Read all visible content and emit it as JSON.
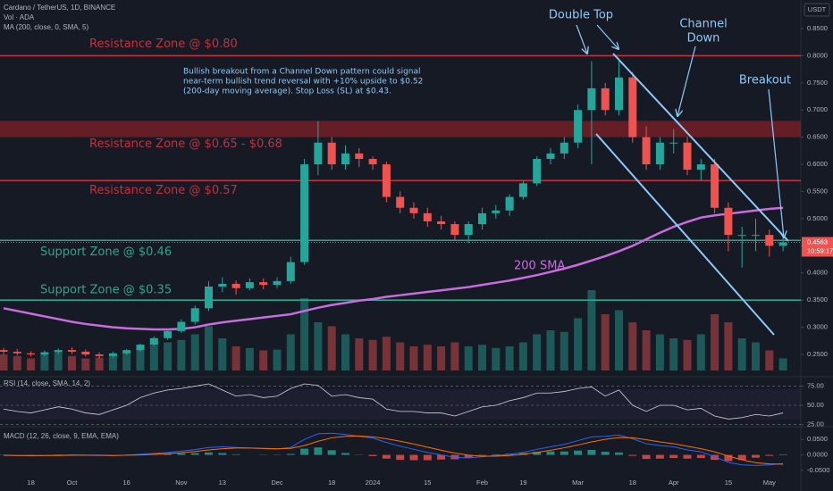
{
  "chart_data": [
    {
      "type": "candlestick",
      "title": "Cardano / TetherUS, 1D, BINANCE",
      "indicator_labels": [
        "Vol · ADA",
        "MA (200, close, 0, SMA, 5)"
      ],
      "axis_label": "USDT",
      "categories": [
        null,
        null,
        "18",
        null,
        null,
        "Oct",
        null,
        null,
        null,
        "16",
        null,
        null,
        null,
        "Nov",
        null,
        null,
        "13",
        null,
        null,
        null,
        "Dec",
        null,
        null,
        null,
        "18",
        null,
        null,
        "2024",
        null,
        null,
        null,
        "15",
        null,
        null,
        null,
        "Feb",
        null,
        null,
        "19",
        null,
        null,
        null,
        "Mar",
        null,
        null,
        null,
        "18",
        null,
        null,
        "Apr",
        null,
        null,
        null,
        "15",
        null,
        null,
        "May",
        null
      ],
      "open": [
        0.258,
        0.255,
        0.252,
        0.25,
        0.254,
        0.258,
        0.255,
        0.25,
        0.247,
        0.252,
        0.258,
        0.268,
        0.28,
        0.293,
        0.31,
        0.335,
        0.375,
        0.38,
        0.372,
        0.383,
        0.378,
        0.385,
        0.42,
        0.6,
        0.64,
        0.6,
        0.62,
        0.61,
        0.6,
        0.54,
        0.52,
        0.51,
        0.495,
        0.49,
        0.47,
        0.49,
        0.51,
        0.515,
        0.54,
        0.565,
        0.61,
        0.62,
        0.64,
        0.7,
        0.74,
        0.7,
        0.76,
        0.65,
        0.6,
        0.64,
        0.64,
        0.59,
        0.6,
        0.52,
        0.47,
        0.47,
        0.47,
        0.45
      ],
      "high": [
        0.262,
        0.26,
        0.256,
        0.257,
        0.261,
        0.263,
        0.259,
        0.254,
        0.255,
        0.26,
        0.27,
        0.283,
        0.297,
        0.315,
        0.34,
        0.385,
        0.392,
        0.386,
        0.39,
        0.39,
        0.392,
        0.43,
        0.61,
        0.68,
        0.65,
        0.635,
        0.63,
        0.615,
        0.605,
        0.55,
        0.53,
        0.52,
        0.505,
        0.495,
        0.495,
        0.52,
        0.525,
        0.545,
        0.57,
        0.615,
        0.63,
        0.65,
        0.71,
        0.79,
        0.75,
        0.79,
        0.77,
        0.67,
        0.65,
        0.665,
        0.65,
        0.61,
        0.61,
        0.53,
        0.485,
        0.5,
        0.48,
        0.47
      ],
      "low": [
        0.25,
        0.248,
        0.246,
        0.247,
        0.25,
        0.251,
        0.246,
        0.243,
        0.244,
        0.249,
        0.255,
        0.265,
        0.277,
        0.29,
        0.305,
        0.33,
        0.365,
        0.36,
        0.368,
        0.37,
        0.372,
        0.38,
        0.415,
        0.58,
        0.59,
        0.59,
        0.595,
        0.59,
        0.53,
        0.51,
        0.5,
        0.485,
        0.48,
        0.46,
        0.455,
        0.48,
        0.5,
        0.505,
        0.535,
        0.56,
        0.6,
        0.61,
        0.63,
        0.6,
        0.69,
        0.69,
        0.64,
        0.59,
        0.59,
        0.62,
        0.58,
        0.57,
        0.51,
        0.44,
        0.41,
        0.44,
        0.43,
        0.44
      ],
      "close": [
        0.255,
        0.252,
        0.25,
        0.254,
        0.258,
        0.255,
        0.25,
        0.247,
        0.252,
        0.258,
        0.268,
        0.28,
        0.293,
        0.31,
        0.335,
        0.375,
        0.38,
        0.372,
        0.383,
        0.378,
        0.385,
        0.42,
        0.6,
        0.64,
        0.6,
        0.62,
        0.61,
        0.6,
        0.54,
        0.52,
        0.51,
        0.495,
        0.49,
        0.47,
        0.49,
        0.51,
        0.515,
        0.54,
        0.565,
        0.61,
        0.62,
        0.64,
        0.7,
        0.74,
        0.7,
        0.76,
        0.65,
        0.6,
        0.64,
        0.64,
        0.59,
        0.6,
        0.52,
        0.47,
        0.47,
        0.47,
        0.45,
        0.4563
      ],
      "up_color": "#26a69a",
      "down_color": "#ef5350",
      "ma": {
        "label": "200 SMA",
        "color": "#c86ddd",
        "values": [
          0.335,
          0.33,
          0.325,
          0.32,
          0.315,
          0.31,
          0.306,
          0.303,
          0.3,
          0.298,
          0.297,
          0.296,
          0.296,
          0.297,
          0.3,
          0.305,
          0.309,
          0.312,
          0.315,
          0.318,
          0.321,
          0.324,
          0.33,
          0.336,
          0.341,
          0.345,
          0.349,
          0.352,
          0.356,
          0.359,
          0.362,
          0.365,
          0.368,
          0.371,
          0.374,
          0.378,
          0.382,
          0.386,
          0.391,
          0.396,
          0.402,
          0.408,
          0.415,
          0.423,
          0.431,
          0.44,
          0.45,
          0.462,
          0.474,
          0.485,
          0.494,
          0.502,
          0.506,
          0.509,
          0.512,
          0.515,
          0.518,
          0.52
        ]
      },
      "zones": [
        {
          "label": "Resistance Zone @ $0.80",
          "value": 0.8,
          "color": "#c3313c"
        },
        {
          "label": "Resistance Zone @ $0.65 - $0.68",
          "range": [
            0.65,
            0.68
          ],
          "color": "#c3313c"
        },
        {
          "label": "Resistance Zone @ $0.57",
          "value": 0.57,
          "color": "#c3313c"
        },
        {
          "label": "Support Zone @ $0.46",
          "value": 0.46,
          "color": "#2fa58c"
        },
        {
          "label": "Support Zone @ $0.35",
          "value": 0.35,
          "color": "#2fa58c"
        }
      ],
      "annotations": {
        "note": [
          "Bullish breakout from a Channel Down pattern could signal",
          "near-term bullish trend reversal with +10% upside to $0.52",
          "(200-day moving average). Stop Loss (SL) at $0.43."
        ],
        "double_top": "Double Top",
        "channel": [
          "Channel",
          "Down"
        ],
        "breakout": "Breakout"
      },
      "countdown": "10:59:17",
      "ylim": [
        0.25,
        0.85
      ],
      "yticks": [
        {
          "value": 0.25,
          "label": "0.2500"
        },
        {
          "value": 0.3,
          "label": "0.3000"
        },
        {
          "value": 0.35,
          "label": "0.3500"
        },
        {
          "value": 0.4,
          "label": "0.4000"
        },
        {
          "value": 0.45,
          "label": "0.4500"
        },
        {
          "value": 0.5,
          "label": "0.5000"
        },
        {
          "value": 0.55,
          "label": "0.5500"
        },
        {
          "value": 0.6,
          "label": "0.6000"
        },
        {
          "value": 0.65,
          "label": "0.6500"
        },
        {
          "value": 0.7,
          "label": "0.7000"
        },
        {
          "value": 0.75,
          "label": "0.7500"
        },
        {
          "value": 0.8,
          "label": "0.8000"
        },
        {
          "value": 0.85,
          "label": "0.8500"
        }
      ]
    },
    {
      "type": "bar",
      "values": [
        20,
        18,
        15,
        20,
        22,
        18,
        15,
        16,
        18,
        22,
        30,
        32,
        35,
        38,
        45,
        55,
        40,
        30,
        28,
        25,
        26,
        45,
        90,
        60,
        55,
        45,
        40,
        38,
        42,
        35,
        30,
        32,
        30,
        35,
        30,
        32,
        28,
        30,
        35,
        45,
        50,
        48,
        65,
        100,
        70,
        75,
        60,
        50,
        45,
        40,
        38,
        45,
        70,
        60,
        40,
        35,
        25,
        15
      ]
    },
    {
      "type": "line",
      "title": "RSI (14, close, SMA, 14, 2)",
      "color": "#d1d4dc",
      "values": [
        45,
        42,
        40,
        44,
        48,
        45,
        40,
        38,
        44,
        50,
        60,
        66,
        70,
        72,
        75,
        78,
        70,
        62,
        64,
        60,
        62,
        72,
        78,
        76,
        62,
        64,
        60,
        58,
        45,
        42,
        42,
        40,
        40,
        36,
        42,
        48,
        50,
        56,
        60,
        66,
        66,
        68,
        72,
        74,
        62,
        70,
        50,
        42,
        50,
        50,
        44,
        46,
        36,
        32,
        34,
        38,
        36,
        40
      ],
      "ylim": [
        22,
        78
      ],
      "yticks": [
        {
          "value": 75,
          "label": "75.00"
        },
        {
          "value": 50,
          "label": "50.00"
        },
        {
          "value": 25,
          "label": "25.00"
        }
      ]
    },
    {
      "type": "macd",
      "title": "MACD (12, 26, close, 9, EMA, EMA)",
      "macd": {
        "color": "#2962ff",
        "values": [
          -0.002,
          -0.002,
          -0.003,
          -0.002,
          -0.001,
          0,
          -0.001,
          -0.002,
          -0.002,
          -0.001,
          0.002,
          0.005,
          0.008,
          0.012,
          0.017,
          0.024,
          0.026,
          0.024,
          0.022,
          0.02,
          0.019,
          0.024,
          0.05,
          0.068,
          0.07,
          0.066,
          0.06,
          0.054,
          0.04,
          0.028,
          0.018,
          0.008,
          0.0,
          -0.008,
          -0.01,
          -0.006,
          -0.002,
          0.002,
          0.008,
          0.018,
          0.026,
          0.034,
          0.046,
          0.058,
          0.06,
          0.064,
          0.052,
          0.036,
          0.03,
          0.026,
          0.016,
          0.01,
          -0.006,
          -0.024,
          -0.032,
          -0.034,
          -0.032,
          -0.028
        ]
      },
      "signal": {
        "color": "#ff6d00",
        "values": [
          -0.001,
          -0.002,
          -0.002,
          -0.002,
          -0.002,
          -0.001,
          -0.001,
          -0.001,
          -0.002,
          -0.001,
          0,
          0.002,
          0.004,
          0.007,
          0.011,
          0.016,
          0.02,
          0.022,
          0.022,
          0.021,
          0.02,
          0.021,
          0.03,
          0.044,
          0.055,
          0.06,
          0.061,
          0.058,
          0.052,
          0.044,
          0.035,
          0.025,
          0.015,
          0.006,
          -0.001,
          -0.004,
          -0.004,
          -0.002,
          0.002,
          0.008,
          0.015,
          0.023,
          0.032,
          0.042,
          0.05,
          0.056,
          0.055,
          0.049,
          0.042,
          0.036,
          0.028,
          0.02,
          0.01,
          -0.004,
          -0.016,
          -0.025,
          -0.029,
          -0.03
        ]
      },
      "histogram": {
        "up_color": "#26a69a",
        "down_color": "#ef5350",
        "values": [
          -0.001,
          0,
          -0.001,
          0,
          0.001,
          0.001,
          0,
          -0.001,
          0,
          0,
          0.002,
          0.003,
          0.004,
          0.005,
          0.006,
          0.008,
          0.006,
          0.002,
          0,
          -0.001,
          -0.001,
          0.003,
          0.02,
          0.024,
          0.015,
          0.006,
          -0.001,
          -0.004,
          -0.012,
          -0.016,
          -0.017,
          -0.017,
          -0.015,
          -0.014,
          -0.009,
          -0.002,
          0.002,
          0.004,
          0.006,
          0.01,
          0.011,
          0.011,
          0.014,
          0.016,
          0.01,
          0.008,
          -0.003,
          -0.013,
          -0.012,
          -0.01,
          -0.012,
          -0.01,
          -0.016,
          -0.02,
          -0.016,
          -0.009,
          -0.003,
          0.002
        ]
      },
      "ylim": [
        -0.053,
        0.085
      ],
      "yticks": [
        {
          "value": 0.05,
          "label": "0.0500"
        },
        {
          "value": 0,
          "label": "0.0000"
        },
        {
          "value": -0.05,
          "label": "-0.0500"
        }
      ]
    }
  ]
}
